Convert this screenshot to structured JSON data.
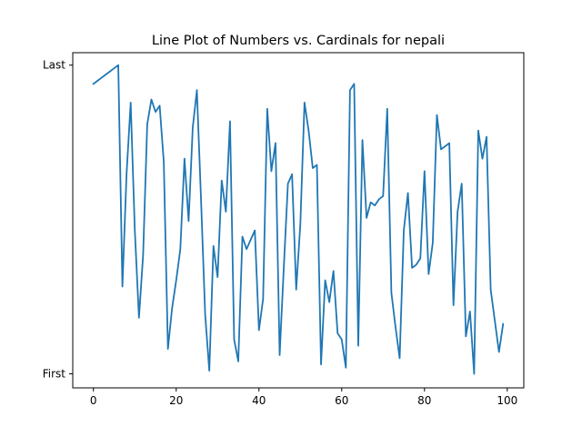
{
  "chart_data": {
    "type": "line",
    "title": "Line Plot of Numbers vs. Cardinals for nepali",
    "xlabel": "",
    "ylabel": "",
    "xlim": [
      -5,
      104
    ],
    "ylim": [
      -3.5,
      104
    ],
    "x_ticks": [
      {
        "value": 0,
        "label": "0"
      },
      {
        "value": 20,
        "label": "20"
      },
      {
        "value": 40,
        "label": "40"
      },
      {
        "value": 60,
        "label": "60"
      },
      {
        "value": 80,
        "label": "80"
      },
      {
        "value": 100,
        "label": "100"
      }
    ],
    "y_ticks": [
      {
        "value": 1,
        "label": "First"
      },
      {
        "value": 100,
        "label": "Last"
      }
    ],
    "grid": false,
    "series": [
      {
        "color": "#1f77b4",
        "x": [
          0,
          1,
          2,
          3,
          4,
          5,
          6,
          7,
          8,
          9,
          10,
          11,
          12,
          13,
          14,
          15,
          16,
          17,
          18,
          19,
          20,
          21,
          22,
          23,
          24,
          25,
          26,
          27,
          28,
          29,
          30,
          31,
          32,
          33,
          34,
          35,
          36,
          37,
          38,
          39,
          40,
          41,
          42,
          43,
          44,
          45,
          46,
          47,
          48,
          49,
          50,
          51,
          52,
          53,
          54,
          55,
          56,
          57,
          58,
          59,
          60,
          61,
          62,
          63,
          64,
          65,
          66,
          67,
          68,
          69,
          70,
          71,
          72,
          73,
          74,
          75,
          76,
          77,
          78,
          79,
          80,
          81,
          82,
          83,
          84,
          85,
          86,
          87,
          88,
          89,
          90,
          91,
          92,
          93,
          94,
          95,
          96,
          97,
          98,
          99
        ],
        "y": [
          94,
          95,
          96,
          97,
          98,
          99,
          100,
          29,
          65,
          88,
          47,
          19,
          39,
          81,
          89,
          85,
          87,
          69,
          9,
          22,
          31,
          41,
          70,
          50,
          80,
          92,
          57,
          20,
          2,
          42,
          32,
          63,
          53,
          82,
          12,
          5,
          45,
          41,
          44,
          47,
          15,
          25,
          86,
          66,
          75,
          7,
          35,
          62,
          65,
          28,
          49,
          88,
          79,
          67,
          68,
          4,
          31,
          24,
          34,
          14,
          12,
          3,
          92,
          94,
          10,
          76,
          51,
          56,
          55,
          57,
          58,
          86,
          27,
          16,
          6,
          47,
          59,
          35,
          36,
          38,
          66,
          33,
          43,
          84,
          73,
          74,
          75,
          23,
          53,
          62,
          13,
          21,
          1,
          79,
          70,
          77,
          28,
          18,
          8,
          17
        ]
      }
    ]
  }
}
